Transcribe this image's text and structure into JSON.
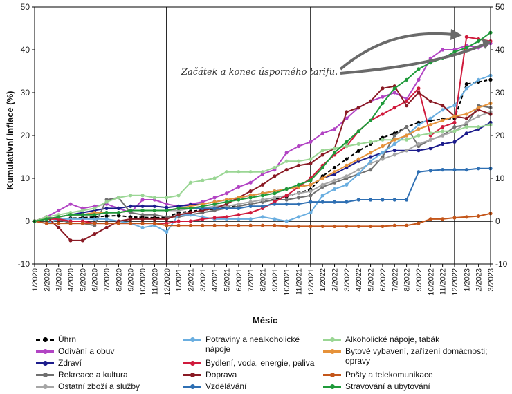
{
  "chart_data": {
    "type": "line",
    "xlabel": "Měsíc",
    "ylabel": "Kumulativní inflace (%)",
    "ylim": [
      -10,
      50
    ],
    "yticks": [
      -10,
      0,
      10,
      20,
      30,
      40,
      50
    ],
    "grid": false,
    "legend_position": "bottom",
    "annotation": "Začátek a konec úsporného tarifu.",
    "vertical_markers": [
      "12/2020",
      "12/2021",
      "12/2022"
    ],
    "categories": [
      "1/2020",
      "2/2020",
      "3/2020",
      "4/2020",
      "5/2020",
      "6/2020",
      "7/2020",
      "8/2020",
      "9/2020",
      "10/2020",
      "11/2020",
      "12/2020",
      "1/2021",
      "2/2021",
      "3/2021",
      "4/2021",
      "5/2021",
      "6/2021",
      "7/2021",
      "8/2021",
      "9/2021",
      "10/2021",
      "11/2021",
      "12/2021",
      "1/2022",
      "2/2022",
      "3/2022",
      "4/2022",
      "5/2022",
      "6/2022",
      "7/2022",
      "8/2022",
      "9/2022",
      "10/2022",
      "11/2022",
      "12/2022",
      "1/2023",
      "2/2023",
      "3/2023"
    ],
    "series": [
      {
        "name": "Úhrn",
        "color": "#000000",
        "dashed": true,
        "values": [
          0,
          0.5,
          0.6,
          0.7,
          0.8,
          1.0,
          1.2,
          1.3,
          1.0,
          0.9,
          0.8,
          0.9,
          2.0,
          2.3,
          2.6,
          2.8,
          3.2,
          3.6,
          4.0,
          4.5,
          5.1,
          5.8,
          6.6,
          7.4,
          10.5,
          12.5,
          14.5,
          16.4,
          18.0,
          19.5,
          20.5,
          22.0,
          23.0,
          23.5,
          23.8,
          24.0,
          32.0,
          32.5,
          33.0
        ]
      },
      {
        "name": "Odívání a obuv",
        "color": "#b244c4",
        "values": [
          0,
          1.0,
          2.5,
          4.0,
          3.0,
          3.5,
          4.0,
          3.0,
          2.0,
          5.0,
          5.0,
          4.0,
          3.5,
          4.0,
          4.5,
          5.5,
          6.5,
          8.0,
          9.0,
          11.0,
          12.0,
          16.0,
          17.5,
          18.5,
          20.5,
          21.5,
          24.0,
          26.5,
          28.0,
          29.0,
          30.0,
          28.5,
          33.0,
          38.0,
          40.0,
          40.0,
          41.0,
          40.5,
          41.5
        ]
      },
      {
        "name": "Zdraví",
        "color": "#1c1c8c",
        "values": [
          0,
          0.5,
          1.0,
          1.5,
          2.0,
          2.5,
          3.0,
          3.0,
          3.5,
          3.5,
          3.5,
          3.2,
          3.5,
          3.8,
          4.0,
          4.5,
          5.0,
          5.5,
          6.0,
          6.5,
          7.0,
          7.5,
          8.0,
          8.5,
          10.0,
          11.0,
          12.5,
          14.0,
          15.0,
          16.0,
          16.5,
          16.5,
          16.5,
          17.0,
          18.0,
          18.5,
          20.5,
          21.5,
          23.0
        ]
      },
      {
        "name": "Rekreace a kultura",
        "color": "#707070",
        "values": [
          0,
          1.0,
          0.5,
          -0.5,
          -0.5,
          -1.0,
          5.0,
          5.5,
          2.0,
          1.5,
          1.5,
          1.0,
          1.0,
          1.5,
          2.0,
          2.5,
          3.0,
          3.5,
          4.0,
          4.5,
          5.0,
          5.0,
          5.5,
          6.0,
          8.0,
          9.0,
          10.0,
          11.0,
          12.0,
          15.0,
          20.0,
          22.0,
          17.5,
          19.0,
          20.0,
          22.0,
          22.5,
          27.0,
          26.5
        ]
      },
      {
        "name": "Ostatní zboží a služby",
        "color": "#a6a6a6",
        "values": [
          0,
          0.5,
          1.0,
          1.5,
          1.5,
          2.0,
          2.0,
          2.0,
          2.5,
          2.5,
          2.5,
          2.5,
          2.5,
          3.0,
          3.0,
          3.5,
          3.5,
          4.0,
          4.5,
          5.0,
          5.5,
          6.0,
          6.5,
          7.0,
          8.5,
          9.5,
          10.5,
          12.0,
          13.5,
          14.5,
          15.5,
          16.5,
          18.0,
          19.0,
          20.0,
          21.0,
          23.0,
          24.5,
          25.5
        ]
      },
      {
        "name": "Potraviny a nealkoholické nápoje",
        "color": "#6aaee0",
        "values": [
          0,
          -0.5,
          0.5,
          0.5,
          0.5,
          0.5,
          0.5,
          0,
          -0.5,
          -1.5,
          -1.0,
          -2.5,
          1.5,
          1.5,
          1.0,
          0.5,
          0.5,
          0.5,
          0.5,
          1.0,
          0.5,
          0,
          1.0,
          2.0,
          6.0,
          7.5,
          8.5,
          11.0,
          14.0,
          16.0,
          18.0,
          20.0,
          22.5,
          24.0,
          26.0,
          27.0,
          31.0,
          33.0,
          34.0
        ]
      },
      {
        "name": "Bydlení, voda, energie, paliva",
        "color": "#d01a3c",
        "values": [
          0,
          0.5,
          0.5,
          0,
          0,
          -0.5,
          -0.5,
          -0.5,
          -0.5,
          -0.5,
          -0.5,
          -0.5,
          0,
          0,
          0.5,
          0.8,
          1.0,
          1.5,
          2.0,
          3.0,
          4.5,
          6.0,
          8.0,
          10.0,
          13.0,
          15.5,
          17.5,
          21.0,
          23.5,
          25.0,
          26.5,
          28.0,
          31.0,
          20.0,
          22.0,
          23.0,
          43.0,
          42.5,
          42.0
        ]
      },
      {
        "name": "Doprava",
        "color": "#8a1a24",
        "values": [
          0,
          1.0,
          -1.5,
          -4.5,
          -4.5,
          -3.0,
          -1.5,
          0,
          0.5,
          0.5,
          0.5,
          0.5,
          1.5,
          2.0,
          2.5,
          3.0,
          4.0,
          5.5,
          7.0,
          8.5,
          10.5,
          12.0,
          13.0,
          13.5,
          15.5,
          17.0,
          25.5,
          26.5,
          28.0,
          31.0,
          31.5,
          27.0,
          30.0,
          28.0,
          27.0,
          24.5,
          24.0,
          26.0,
          25.0
        ]
      },
      {
        "name": "Vzdělávání",
        "color": "#2e6fb3",
        "values": [
          0,
          0.5,
          1.0,
          1.5,
          1.5,
          2.0,
          2.0,
          2.0,
          2.5,
          2.5,
          2.5,
          2.5,
          3.0,
          3.0,
          3.0,
          3.0,
          3.0,
          3.0,
          3.5,
          3.5,
          4.0,
          4.0,
          4.0,
          4.5,
          4.5,
          4.5,
          4.5,
          5.0,
          5.0,
          5.0,
          5.0,
          5.0,
          11.5,
          11.8,
          12.0,
          12.0,
          12.0,
          12.3,
          12.3
        ]
      },
      {
        "name": "Alkoholické nápoje, tabák",
        "color": "#9ad694",
        "values": [
          0,
          1.0,
          1.5,
          2.0,
          2.5,
          3.0,
          4.5,
          5.5,
          6.0,
          6.0,
          5.5,
          5.5,
          6.0,
          9.0,
          9.5,
          10.0,
          11.5,
          11.5,
          11.5,
          11.5,
          12.5,
          14.0,
          14.0,
          14.5,
          16.5,
          17.0,
          17.5,
          18.0,
          18.5,
          19.0,
          19.0,
          19.0,
          20.0,
          20.5,
          21.0,
          21.0,
          22.0,
          22.0,
          22.5
        ]
      },
      {
        "name": "Bytové vybavení, zařízení domácnosti; opravy",
        "color": "#e6923a",
        "values": [
          0,
          0.5,
          1.0,
          1.5,
          1.5,
          2.0,
          2.0,
          2.0,
          2.5,
          2.5,
          2.5,
          2.5,
          3.0,
          3.5,
          4.0,
          4.5,
          5.0,
          5.5,
          6.0,
          6.5,
          7.0,
          7.5,
          8.0,
          8.5,
          10.0,
          11.5,
          13.0,
          14.5,
          16.0,
          17.5,
          19.0,
          20.0,
          21.5,
          22.5,
          23.5,
          24.5,
          25.0,
          26.5,
          27.5
        ]
      },
      {
        "name": "Pošty a telekomunikace",
        "color": "#c4561a",
        "values": [
          0,
          -0.5,
          -0.5,
          -0.5,
          -0.5,
          -0.5,
          -0.5,
          -0.5,
          -0.5,
          -0.5,
          -0.5,
          -1.0,
          -1.0,
          -1.0,
          -1.0,
          -1.0,
          -1.0,
          -1.0,
          -1.0,
          -1.0,
          -1.0,
          -1.2,
          -1.2,
          -1.2,
          -1.2,
          -1.2,
          -1.2,
          -1.2,
          -1.2,
          -1.2,
          -1.0,
          -1.0,
          -0.5,
          0.5,
          0.5,
          0.8,
          1.0,
          1.2,
          1.8
        ]
      },
      {
        "name": "Stravování a ubytování",
        "color": "#1e9a3a",
        "values": [
          0,
          0.5,
          1.0,
          1.5,
          1.5,
          1.5,
          2.0,
          2.0,
          2.5,
          2.5,
          2.5,
          2.5,
          3.0,
          3.0,
          3.5,
          4.0,
          4.5,
          5.0,
          5.5,
          6.0,
          6.5,
          7.5,
          8.5,
          9.5,
          12.5,
          16.0,
          18.5,
          21.0,
          23.5,
          27.5,
          31.0,
          33.0,
          35.5,
          37.0,
          38.0,
          39.5,
          40.5,
          42.0,
          44.0
        ]
      }
    ]
  }
}
